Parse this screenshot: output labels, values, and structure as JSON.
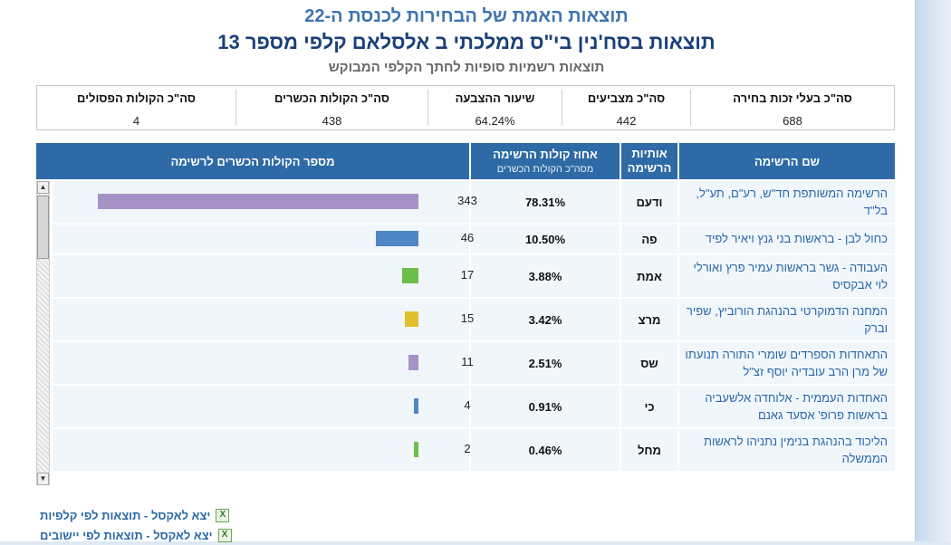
{
  "header": {
    "title": "תוצאות האמת של הבחירות לכנסת ה-22",
    "subtitle": "תוצאות בסח'נין בי\"ס ממלכתי ב אלסלאם קלפי מספר 13",
    "note": "תוצאות רשמיות סופיות לחתך הקלפי המבוקש"
  },
  "summary": [
    {
      "label": "סה\"כ בעלי זכות בחירה",
      "value": "688"
    },
    {
      "label": "סה\"כ מצביעים",
      "value": "442"
    },
    {
      "label": "שיעור ההצבעה",
      "value": "64.24%"
    },
    {
      "label": "סה\"כ הקולות הכשרים",
      "value": "438"
    },
    {
      "label": "סה\"כ הקולות הפסולים",
      "value": "4"
    }
  ],
  "table": {
    "headers": {
      "name": "שם הרשימה",
      "letters_line1": "אותיות",
      "letters_line2": "הרשימה",
      "pct": "אחוז קולות הרשימה",
      "pct_sub": "מסה\"כ הקולות הכשרים",
      "votes": "מספר הקולות הכשרים לרשימה"
    },
    "rows": [
      {
        "name": "הרשימה המשותפת חד\"ש, רע\"ם, תע\"ל, בל\"ד",
        "letters": "ודעם",
        "pct": "78.31%",
        "votes": "343",
        "color": "#a593c8"
      },
      {
        "name": "כחול לבן - בראשות בני גנץ ויאיר לפיד",
        "letters": "פה",
        "pct": "10.50%",
        "votes": "46",
        "color": "#4f86c6"
      },
      {
        "name": "העבודה - גשר בראשות עמיר פרץ ואורלי לוי אבקסיס",
        "letters": "אמת",
        "pct": "3.88%",
        "votes": "17",
        "color": "#6cc04a"
      },
      {
        "name": "המחנה הדמוקרטי בהנהגת הורוביץ, שפיר וברק",
        "letters": "מרצ",
        "pct": "3.42%",
        "votes": "15",
        "color": "#e0c02e"
      },
      {
        "name": "התאחדות הספרדים שומרי התורה תנועתו של מרן הרב עובדיה יוסף זצ\"ל",
        "letters": "שס",
        "pct": "2.51%",
        "votes": "11",
        "color": "#a593c8"
      },
      {
        "name": "האחדות העממית - אלוחדה אלשעביה בראשות פרופ' אסעד גאנם",
        "letters": "כי",
        "pct": "0.91%",
        "votes": "4",
        "color": "#4f86c6"
      },
      {
        "name": "הליכוד בהנהגת בנימין נתניהו לראשות הממשלה",
        "letters": "מחל",
        "pct": "0.46%",
        "votes": "2",
        "color": "#6cc04a"
      }
    ]
  },
  "links": [
    {
      "label": "יצא לאקסל - תוצאות לפי קלפיות",
      "icon": "excel-icon"
    },
    {
      "label": "יצא לאקסל - תוצאות לפי יישובים",
      "icon": "excel-icon"
    }
  ]
}
